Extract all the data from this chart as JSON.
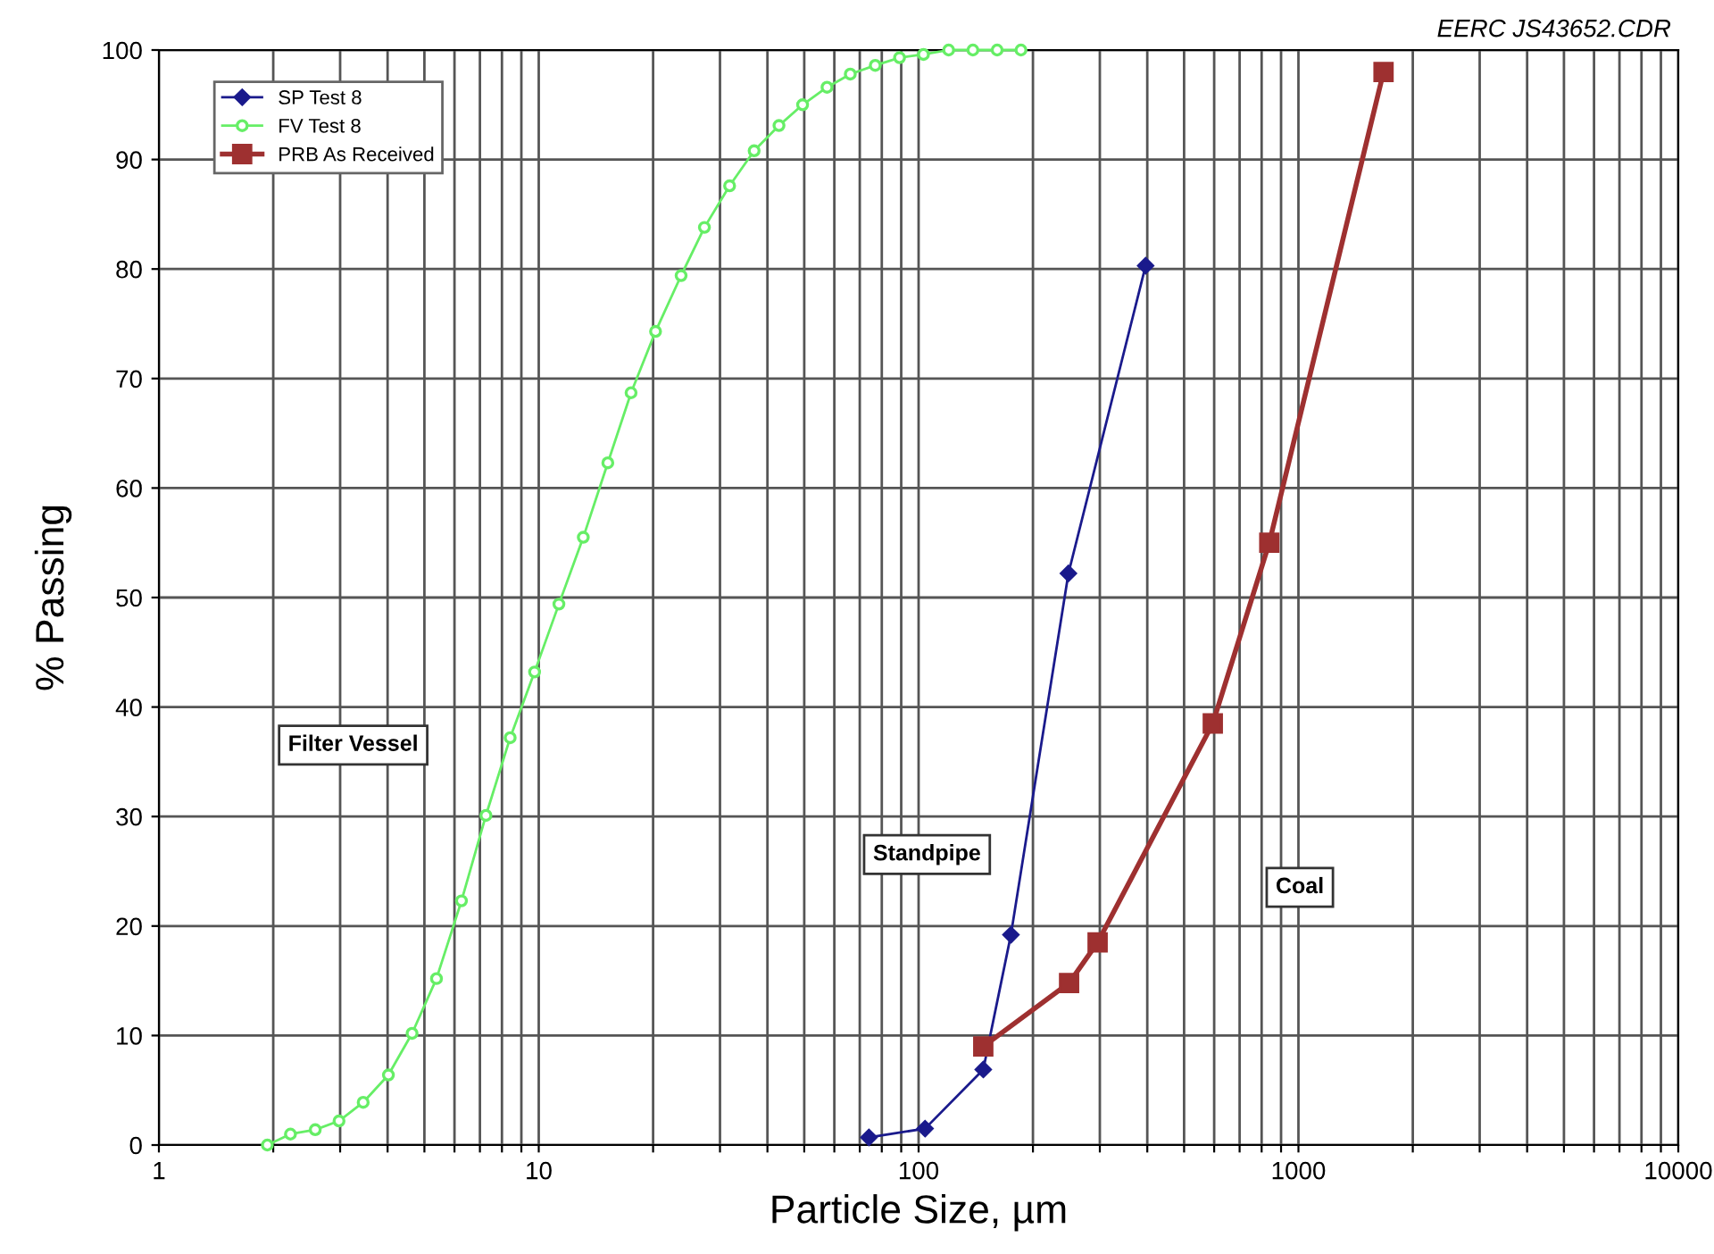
{
  "chart_data": {
    "type": "line",
    "xlabel": "Particle Size, µm",
    "ylabel": "% Passing",
    "log": "x",
    "xlim": [
      1,
      10000
    ],
    "ylim": [
      0,
      100
    ],
    "xticks": [
      1,
      {
        "value": 2,
        "label": null
      },
      {
        "value": 3,
        "label": null
      },
      {
        "value": 4,
        "label": null
      },
      {
        "value": 5,
        "label": null
      },
      {
        "value": 6,
        "label": null
      },
      {
        "value": 7,
        "label": null
      },
      {
        "value": 8,
        "label": null
      },
      {
        "value": 9,
        "label": null
      },
      10,
      {
        "value": 20,
        "label": null
      },
      {
        "value": 30,
        "label": null
      },
      {
        "value": 40,
        "label": null
      },
      {
        "value": 50,
        "label": null
      },
      {
        "value": 60,
        "label": null
      },
      {
        "value": 70,
        "label": null
      },
      {
        "value": 80,
        "label": null
      },
      {
        "value": 90,
        "label": null
      },
      100,
      {
        "value": 200,
        "label": null
      },
      {
        "value": 300,
        "label": null
      },
      {
        "value": 400,
        "label": null
      },
      {
        "value": 500,
        "label": null
      },
      {
        "value": 600,
        "label": null
      },
      {
        "value": 700,
        "label": null
      },
      {
        "value": 800,
        "label": null
      },
      {
        "value": 900,
        "label": null
      },
      1000,
      {
        "value": 2000,
        "label": null
      },
      {
        "value": 3000,
        "label": null
      },
      {
        "value": 4000,
        "label": null
      },
      {
        "value": 5000,
        "label": null
      },
      {
        "value": 6000,
        "label": null
      },
      {
        "value": 7000,
        "label": null
      },
      {
        "value": 8000,
        "label": null
      },
      {
        "value": 9000,
        "label": null
      },
      10000
    ],
    "yticks": [
      0,
      10,
      20,
      30,
      40,
      50,
      60,
      70,
      80,
      90,
      100
    ],
    "grid": true,
    "legend": "top left",
    "line_style": "solid",
    "series": [
      {
        "name": "SP Test 8",
        "color": "#1a1a8c",
        "marker": "diamond",
        "x": [
          74,
          104,
          148,
          175,
          248,
          396
        ],
        "values": [
          0.7,
          1.5,
          6.9,
          19.2,
          52.2,
          80.3
        ]
      },
      {
        "name": "FV Test 8",
        "color": "#66ee66",
        "marker": "circle",
        "x": [
          1.93,
          2.22,
          2.58,
          2.98,
          3.45,
          4.02,
          4.64,
          5.38,
          6.26,
          7.26,
          8.41,
          9.75,
          11.3,
          13.1,
          15.2,
          17.5,
          20.3,
          23.7,
          27.3,
          31.8,
          36.9,
          42.9,
          49.5,
          57.4,
          66.1,
          76.9,
          89.1,
          103,
          120,
          139,
          161,
          186
        ],
        "values": [
          0,
          1.0,
          1.4,
          2.2,
          3.9,
          6.4,
          10.2,
          15.2,
          22.3,
          30.1,
          37.2,
          43.2,
          49.4,
          55.5,
          62.3,
          68.7,
          74.3,
          79.4,
          83.8,
          87.6,
          90.8,
          93.1,
          95.0,
          96.6,
          97.8,
          98.6,
          99.3,
          99.6,
          100,
          100,
          100,
          100
        ]
      },
      {
        "name": "PRB As Received",
        "color": "#9e3030",
        "marker": "square",
        "x": [
          148,
          249,
          296,
          595,
          838,
          1675
        ],
        "values": [
          9.0,
          14.8,
          18.5,
          38.5,
          55.0,
          98.0
        ]
      }
    ],
    "annotations": [
      "Filter Vessel",
      "Standpipe",
      "Coal",
      "EERC JS43652.CDR"
    ]
  }
}
